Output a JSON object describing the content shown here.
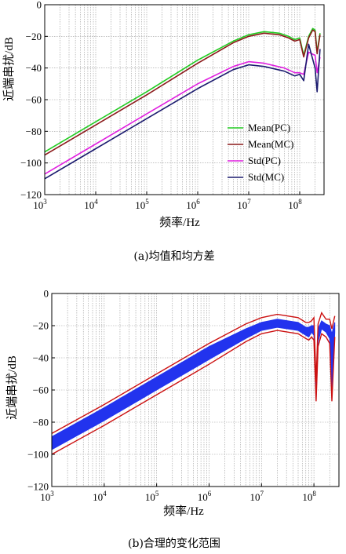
{
  "chart_data": [
    {
      "type": "line",
      "caption": "(a)均值和均方差",
      "xlabel": "频率/Hz",
      "ylabel": "近端串扰/dB",
      "xscale": "log",
      "xlim": [
        1000,
        300000000
      ],
      "ylim": [
        -120,
        0
      ],
      "xticks": [
        {
          "base": "10",
          "exp": "3",
          "value": 1000
        },
        {
          "base": "10",
          "exp": "4",
          "value": 10000
        },
        {
          "base": "10",
          "exp": "5",
          "value": 100000
        },
        {
          "base": "10",
          "exp": "6",
          "value": 1000000
        },
        {
          "base": "10",
          "exp": "7",
          "value": 10000000
        },
        {
          "base": "10",
          "exp": "8",
          "value": 100000000
        }
      ],
      "yticks": [
        "0",
        "−20",
        "−40",
        "−60",
        "−80",
        "−100",
        "−120"
      ],
      "ytick_values": [
        0,
        -20,
        -40,
        -60,
        -80,
        -100,
        -120
      ],
      "grid": true,
      "legend_position": "bottom-right",
      "series": [
        {
          "name": "Mean(PC)",
          "color": "#22cc22",
          "x": [
            1000,
            10000,
            100000,
            1000000,
            5000000,
            10000000,
            20000000,
            40000000,
            60000000,
            80000000,
            100000000,
            120000000,
            150000000,
            180000000,
            200000000,
            220000000,
            250000000
          ],
          "y": [
            -93,
            -74,
            -55,
            -35,
            -23,
            -19,
            -17,
            -18,
            -20,
            -22,
            -21,
            -32,
            -20,
            -15,
            -16,
            -30,
            -18
          ]
        },
        {
          "name": "Mean(MC)",
          "color": "#8b1a1a",
          "x": [
            1000,
            10000,
            100000,
            1000000,
            5000000,
            10000000,
            20000000,
            40000000,
            60000000,
            80000000,
            100000000,
            120000000,
            150000000,
            180000000,
            200000000,
            220000000,
            250000000
          ],
          "y": [
            -95,
            -76,
            -57,
            -37,
            -24,
            -20,
            -18,
            -19,
            -21,
            -23,
            -22,
            -33,
            -21,
            -16,
            -17,
            -31,
            -19
          ]
        },
        {
          "name": "Std(PC)",
          "color": "#e020e0",
          "x": [
            1000,
            10000,
            100000,
            1000000,
            5000000,
            10000000,
            20000000,
            50000000,
            80000000,
            100000000,
            120000000,
            150000000,
            200000000,
            220000000,
            250000000
          ],
          "y": [
            -107,
            -88,
            -69,
            -50,
            -39,
            -36,
            -37,
            -40,
            -43,
            -43,
            -44,
            -30,
            -32,
            -43,
            -33
          ]
        },
        {
          "name": "Std(MC)",
          "color": "#1a1a6e",
          "x": [
            1000,
            10000,
            100000,
            1000000,
            5000000,
            10000000,
            20000000,
            50000000,
            80000000,
            100000000,
            120000000,
            150000000,
            200000000,
            220000000,
            250000000
          ],
          "y": [
            -110,
            -91,
            -72,
            -53,
            -41,
            -38,
            -39,
            -42,
            -45,
            -44,
            -48,
            -25,
            -40,
            -55,
            -28
          ]
        }
      ]
    },
    {
      "type": "area",
      "caption": "(b)合理的变化范围",
      "xlabel": "频率/Hz",
      "ylabel": "近端串扰/dB",
      "xscale": "log",
      "xlim": [
        1000,
        300000000
      ],
      "ylim": [
        -120,
        0
      ],
      "xticks": [
        {
          "base": "10",
          "exp": "3",
          "value": 1000
        },
        {
          "base": "10",
          "exp": "4",
          "value": 10000
        },
        {
          "base": "10",
          "exp": "5",
          "value": 100000
        },
        {
          "base": "10",
          "exp": "6",
          "value": 1000000
        },
        {
          "base": "10",
          "exp": "7",
          "value": 10000000
        },
        {
          "base": "10",
          "exp": "8",
          "value": 100000000
        }
      ],
      "yticks": [
        "0",
        "−20",
        "−40",
        "−60",
        "−80",
        "−100",
        "−120"
      ],
      "ytick_values": [
        0,
        -20,
        -40,
        -60,
        -80,
        -100,
        -120
      ],
      "grid": true,
      "band": {
        "color": "#2233ee",
        "x": [
          1000,
          10000,
          100000,
          1000000,
          5000000,
          10000000,
          20000000,
          50000000,
          70000000,
          80000000,
          90000000,
          100000000,
          110000000,
          120000000,
          140000000,
          170000000,
          200000000,
          220000000,
          250000000
        ],
        "upper": [
          -89,
          -71,
          -52,
          -33,
          -22,
          -18,
          -16,
          -18,
          -21,
          -21,
          -20,
          -20,
          -60,
          -22,
          -17,
          -19,
          -20,
          -25,
          -18
        ],
        "lower": [
          -97,
          -79,
          -60,
          -41,
          -28,
          -23,
          -21,
          -23,
          -26,
          -27,
          -24,
          -26,
          -66,
          -30,
          -22,
          -24,
          -28,
          -66,
          -24
        ]
      },
      "bounds": {
        "color": "#cc1111",
        "x": [
          1000,
          10000,
          100000,
          1000000,
          5000000,
          10000000,
          20000000,
          50000000,
          70000000,
          80000000,
          90000000,
          100000000,
          110000000,
          120000000,
          140000000,
          170000000,
          200000000,
          220000000,
          250000000
        ],
        "upper": [
          -87,
          -69,
          -50,
          -31,
          -19,
          -15,
          -13,
          -15,
          -18,
          -18,
          -17,
          -15,
          -55,
          -19,
          -12,
          -16,
          -16,
          -22,
          -14
        ],
        "lower": [
          -100,
          -82,
          -63,
          -44,
          -30,
          -25,
          -23,
          -25,
          -28,
          -29,
          -27,
          -29,
          -67,
          -33,
          -25,
          -27,
          -31,
          -67,
          -27
        ]
      }
    }
  ]
}
